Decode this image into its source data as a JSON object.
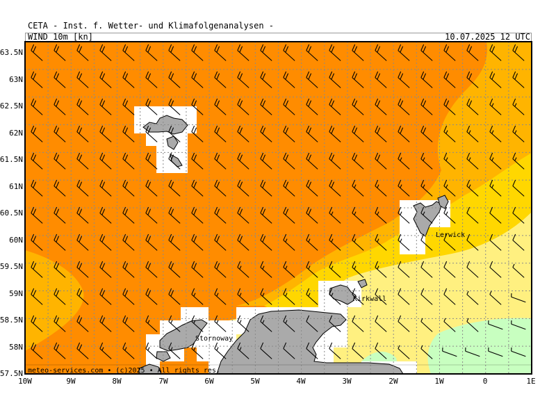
{
  "header": {
    "organization": "CETA - Inst. f. Wetter- und Klimafolgenanalysen -",
    "variable": "WIND 10m [kn]",
    "valid_time": "10.07.2025 12 UTC"
  },
  "map": {
    "region": "North Atlantic, Faroe Islands, Shetland, Orkney, northern Scotland",
    "projection": "lat-lon",
    "lon_range": [
      -10,
      1
    ],
    "lat_range": [
      57.5,
      63.5
    ],
    "grid_lines": "dotted gray",
    "lat_labels": [
      "63.5N",
      "63N",
      "62.5N",
      "62N",
      "61.5N",
      "61N",
      "60.5N",
      "60N",
      "59.5N",
      "59N",
      "58.5N",
      "58N",
      "57.5N"
    ],
    "lon_labels": [
      "10W",
      "9W",
      "8W",
      "7W",
      "6W",
      "5W",
      "4W",
      "3W",
      "2W",
      "1W",
      "0",
      "1E"
    ],
    "colors": {
      "strong": "#ff8c00",
      "fresh": "#ffb400",
      "moderate": "#ffd700",
      "light": "#fff080",
      "calm": "#c8ffc0",
      "land": "#aaaaaa",
      "nodata": "#ffffff"
    },
    "wind_barbs": "south-westerly, ~20-25 kn west, weakening toward south-east",
    "places": [
      {
        "name": "Lerwick",
        "lon": -1.15,
        "lat": 60.15
      },
      {
        "name": "Kirkwall",
        "lon": -2.95,
        "lat": 58.98
      },
      {
        "name": "Stornoway",
        "lon": -6.39,
        "lat": 58.21
      }
    ]
  },
  "footer": {
    "credit": "meteo-services.com • (c)2025 • All rights res."
  }
}
